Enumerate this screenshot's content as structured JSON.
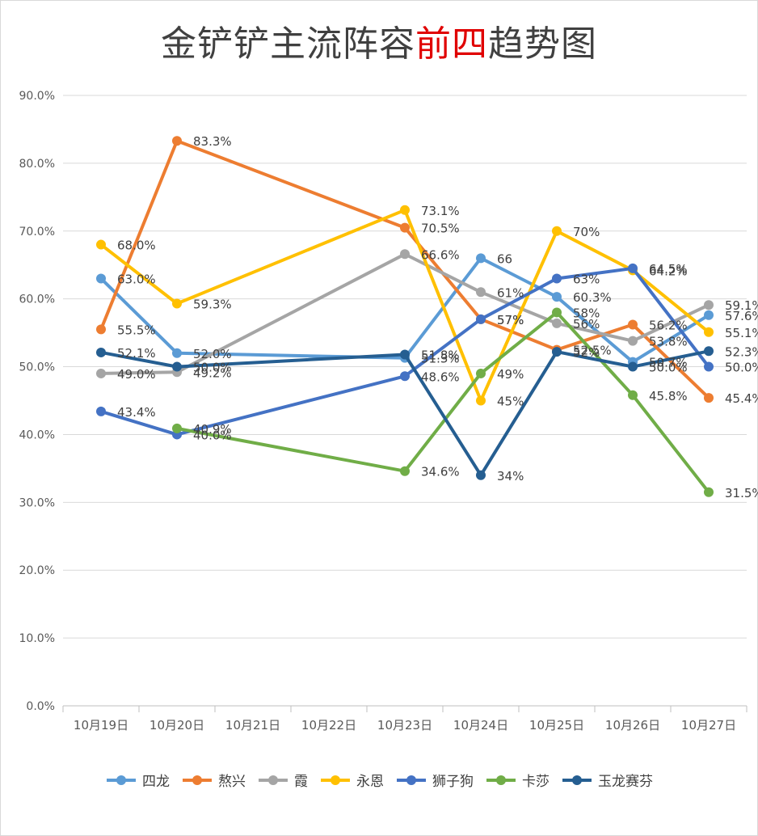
{
  "title": {
    "part1": "金铲铲主流阵容",
    "highlight": "前四",
    "part2": "趋势图",
    "highlight_color": "#e00000"
  },
  "chart_data": {
    "type": "line",
    "categories": [
      "10月19日",
      "10月20日",
      "10月21日",
      "10月22日",
      "10月23日",
      "10月24日",
      "10月25日",
      "10月26日",
      "10月27日"
    ],
    "ylim": [
      0,
      90
    ],
    "yticks": [
      "0.0%",
      "10.0%",
      "20.0%",
      "30.0%",
      "40.0%",
      "50.0%",
      "60.0%",
      "70.0%",
      "80.0%",
      "90.0%"
    ],
    "grid": true,
    "legend_position": "bottom",
    "series": [
      {
        "name": "四龙",
        "color": "#5b9bd5",
        "values": [
          63.0,
          52.0,
          null,
          null,
          51.3,
          66,
          60.3,
          50.7,
          57.6
        ],
        "labels": [
          "63.0%",
          "52.0%",
          null,
          null,
          "51.3%",
          "66",
          "60.3%",
          "50.7%",
          "57.6%"
        ]
      },
      {
        "name": "熬兴",
        "color": "#ed7d31",
        "values": [
          55.5,
          83.3,
          null,
          null,
          70.5,
          57,
          52.5,
          56.2,
          45.4
        ],
        "labels": [
          "55.5%",
          "83.3%",
          null,
          null,
          "70.5%",
          "57%",
          "52.5%",
          "56.2%",
          "45.4%"
        ]
      },
      {
        "name": "霞",
        "color": "#a5a5a5",
        "values": [
          49.0,
          49.2,
          null,
          null,
          66.6,
          61,
          56.4,
          53.8,
          59.1
        ],
        "labels": [
          "49.0%",
          "49.2%",
          null,
          null,
          "66.6%",
          "61%",
          "56%",
          "53.8%",
          "59.1%"
        ]
      },
      {
        "name": "永恩",
        "color": "#ffc000",
        "values": [
          68.0,
          59.3,
          null,
          null,
          73.1,
          45,
          70,
          64.2,
          55.1
        ],
        "labels": [
          "68.0%",
          "59.3%",
          null,
          null,
          "73.1%",
          "45%",
          "70%",
          "64.2%",
          "55.1%"
        ]
      },
      {
        "name": "狮子狗",
        "color": "#4472c4",
        "values": [
          43.4,
          40.0,
          null,
          null,
          48.6,
          57,
          63,
          64.5,
          50.0
        ],
        "labels": [
          "43.4%",
          "40.0%",
          null,
          null,
          "48.6%",
          "57%",
          "63%",
          "64.5%",
          "50.0%"
        ]
      },
      {
        "name": "卡莎",
        "color": "#70ad47",
        "values": [
          null,
          40.9,
          null,
          null,
          34.6,
          49,
          58,
          45.8,
          31.5
        ],
        "labels": [
          null,
          "40.9%",
          null,
          null,
          "34.6%",
          "49%",
          "58%",
          "45.8%",
          "31.5%"
        ]
      },
      {
        "name": "玉龙赛芬",
        "color": "#255e91",
        "values": [
          52.1,
          50.0,
          null,
          null,
          51.8,
          34,
          52.2,
          50.0,
          52.3
        ],
        "labels": [
          "52.1%",
          "50.0%",
          null,
          null,
          "51.8%",
          "34%",
          "52%",
          "50.0%",
          "52.3%"
        ]
      }
    ]
  }
}
